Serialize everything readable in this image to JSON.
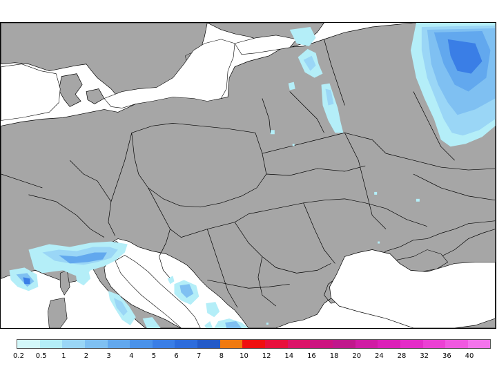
{
  "map": {
    "land_color": "#a6a6a6",
    "water_color": "#ffffff",
    "border_color": "#000000"
  },
  "legend": {
    "ticks": [
      "0.2",
      "0.5",
      "1",
      "2",
      "3",
      "4",
      "5",
      "6",
      "7",
      "8",
      "10",
      "12",
      "14",
      "16",
      "18",
      "20",
      "24",
      "28",
      "32",
      "36",
      "40"
    ],
    "colors": [
      "#d4f8fa",
      "#b4eef8",
      "#9ad6f6",
      "#7fc0f2",
      "#62a8ee",
      "#4a92ea",
      "#3a7ee6",
      "#2d6cdc",
      "#235ac8",
      "#f07a10",
      "#f01010",
      "#e8103c",
      "#dc1468",
      "#cc1480",
      "#c0188c",
      "#d01ca4",
      "#dc20b8",
      "#e42cc8",
      "#ec40d4",
      "#f058e0",
      "#f474ec"
    ]
  }
}
